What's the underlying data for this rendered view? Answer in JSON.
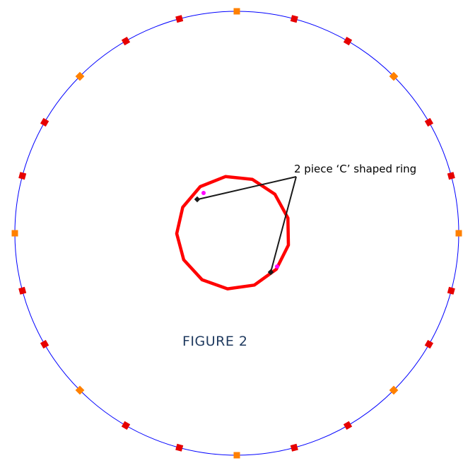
{
  "figure": {
    "title": "FIGURE 2",
    "callout_label": "2 piece ‘C’ shaped ring"
  },
  "colors": {
    "outer_circle": "#0000ff",
    "ring": "#ff0000",
    "marker_primary": "#e60000",
    "marker_secondary": "#ff8000",
    "joint_marker": "#ff00ff",
    "leader_line": "#1a1a1a",
    "title": "#1f3a5f",
    "label": "#000000"
  },
  "outer_ring_markers": {
    "count": 24,
    "pattern": [
      "orange",
      "red",
      "red"
    ]
  },
  "inner_ring": {
    "sides": 13,
    "pieces": 2,
    "joint_marker_count": 2
  }
}
